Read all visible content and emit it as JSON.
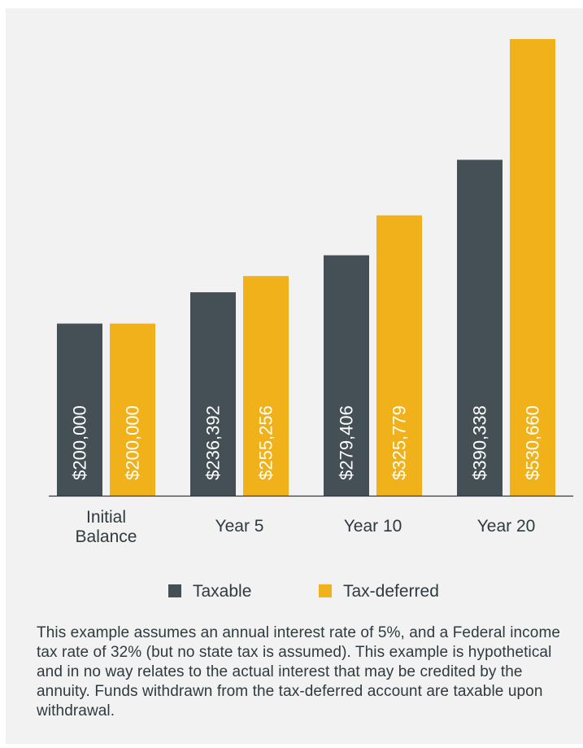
{
  "chart_data": {
    "type": "bar",
    "categories": [
      "Initial\nBalance",
      "Year 5",
      "Year 10",
      "Year 20"
    ],
    "series": [
      {
        "name": "Taxable",
        "color": "#454f56",
        "values": [
          200000,
          236392,
          279406,
          390338
        ],
        "labels": [
          "$200,000",
          "$236,392",
          "$279,406",
          "$390,338"
        ]
      },
      {
        "name": "Tax-deferred",
        "color": "#f1b11b",
        "values": [
          200000,
          255256,
          325779,
          530660
        ],
        "labels": [
          "$200,000",
          "$255,256",
          "$325,779",
          "$530,660"
        ]
      }
    ],
    "ylim": [
      0,
      530660
    ],
    "grid": false,
    "legend_position": "bottom"
  },
  "legend": {
    "taxable": "Taxable",
    "tax_deferred": "Tax-deferred"
  },
  "footnote": "This example assumes an annual interest rate of 5%, and a Federal income tax rate of 32% (but no state tax is assumed). This example is hypothetical and in no way relates to the actual interest that may be credited by the annuity. Funds withdrawn from the tax-deferred account are taxable upon withdrawal."
}
